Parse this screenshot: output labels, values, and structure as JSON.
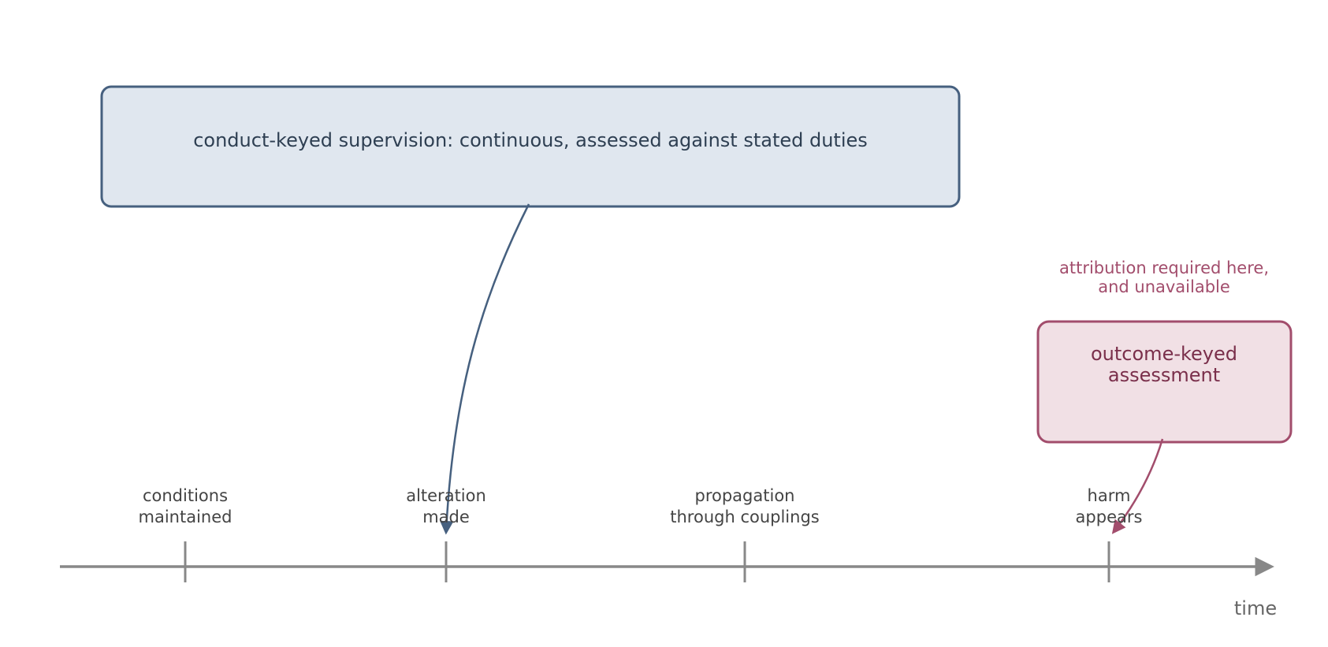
{
  "conduct_box": {
    "label": "conduct-keyed supervision: continuous, assessed against stated duties"
  },
  "outcome_box": {
    "lines": [
      "outcome-keyed",
      "assessment"
    ]
  },
  "annotation": {
    "lines": [
      "attribution required here,",
      "and unavailable"
    ]
  },
  "timeline": {
    "axis_label": "time",
    "events": [
      {
        "lines": [
          "conditions",
          "maintained"
        ]
      },
      {
        "lines": [
          "alteration",
          "made"
        ]
      },
      {
        "lines": [
          "propagation",
          "through couplings"
        ]
      },
      {
        "lines": [
          "harm",
          "appears"
        ]
      }
    ]
  }
}
